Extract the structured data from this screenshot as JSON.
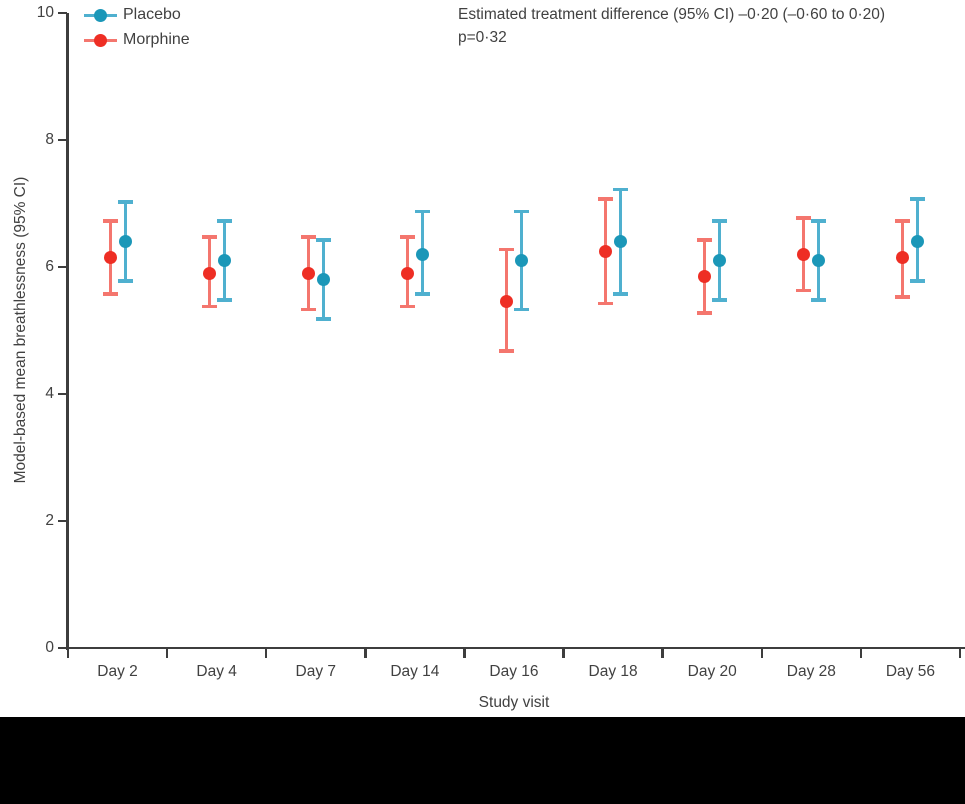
{
  "figure": {
    "annotation_line1": "Estimated treatment difference (95% CI) –0·20 (–0·60 to 0·20)",
    "annotation_line2": "p=0·32"
  },
  "chart_data": {
    "type": "scatter",
    "subtype": "point-with-95CI-errorbars",
    "title": "",
    "xlabel": "Study visit",
    "ylabel": "Model-based mean breathlessness (95% CI)",
    "categories": [
      "Day 2",
      "Day 4",
      "Day 7",
      "Day 14",
      "Day 16",
      "Day 18",
      "Day 20",
      "Day 28",
      "Day 56"
    ],
    "ylim": [
      0,
      10
    ],
    "yticks": [
      0,
      2,
      4,
      6,
      8,
      10
    ],
    "grid": false,
    "legend_position": "top-left",
    "annotation": "Estimated treatment difference (95% CI) –0·20 (–0·60 to 0·20), p=0·32",
    "series": [
      {
        "name": "Placebo",
        "dot_color": "#1B97B8",
        "line_color": "#4FB0CF",
        "values": [
          6.4,
          6.1,
          5.8,
          6.2,
          6.1,
          6.4,
          6.1,
          6.1,
          6.4
        ],
        "ci_low": [
          5.75,
          5.45,
          5.15,
          5.55,
          5.3,
          5.55,
          5.45,
          5.45,
          5.75
        ],
        "ci_high": [
          7.05,
          6.75,
          6.45,
          6.9,
          6.9,
          7.25,
          6.75,
          6.75,
          7.1
        ]
      },
      {
        "name": "Morphine",
        "dot_color": "#EE2E24",
        "line_color": "#F4766E",
        "values": [
          6.15,
          5.9,
          5.9,
          5.9,
          5.45,
          6.25,
          5.85,
          6.2,
          6.15
        ],
        "ci_low": [
          5.55,
          5.35,
          5.3,
          5.35,
          4.65,
          5.4,
          5.25,
          5.6,
          5.5
        ],
        "ci_high": [
          6.75,
          6.5,
          6.5,
          6.5,
          6.3,
          7.1,
          6.45,
          6.8,
          6.75
        ]
      }
    ],
    "axis_color": "#3d3d3d"
  }
}
